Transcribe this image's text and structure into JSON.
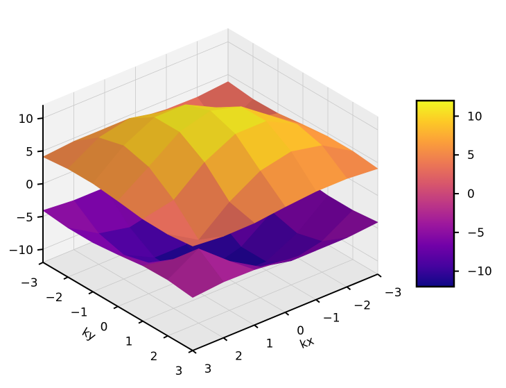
{
  "chart_data": {
    "type": "surface",
    "x_label": "kx",
    "y_label": "ky",
    "x": [
      -3,
      -2,
      -1,
      0,
      1,
      2,
      3
    ],
    "y": [
      -3,
      -2,
      -1,
      0,
      1,
      2,
      3
    ],
    "xlim": [
      -3,
      3
    ],
    "ylim": [
      -3,
      3
    ],
    "zlim": [
      -12,
      12
    ],
    "xticks": [
      {
        "value": -3,
        "label": "−3"
      },
      {
        "value": -2,
        "label": "−2"
      },
      {
        "value": -1,
        "label": "−1"
      },
      0,
      1,
      2,
      3
    ],
    "yticks": [
      {
        "value": -3,
        "label": "−3"
      },
      {
        "value": -2,
        "label": "−2"
      },
      {
        "value": -1,
        "label": "−1"
      },
      0,
      1,
      2,
      3
    ],
    "zticks": [
      {
        "value": -10,
        "label": "−10"
      },
      {
        "value": -5,
        "label": "−5"
      },
      0,
      5,
      10
    ],
    "grid": true,
    "surfaces": [
      {
        "z": [
          [
            3.92,
            3.48,
            3.56,
            4.08,
            4.5,
            4.5,
            4.08
          ],
          [
            3.48,
            0.67,
            4.5,
            7.31,
            8.32,
            7.31,
            4.5
          ],
          [
            3.56,
            4.5,
            8.32,
            10.7,
            10.7,
            8.32,
            4.5
          ],
          [
            4.08,
            7.31,
            10.7,
            12,
            10.7,
            7.31,
            4.08
          ],
          [
            4.5,
            8.32,
            10.7,
            10.7,
            8.32,
            4.5,
            3.56
          ],
          [
            4.5,
            7.31,
            8.32,
            7.31,
            4.5,
            0.67,
            3.48
          ],
          [
            4.08,
            4.5,
            4.5,
            4.08,
            3.56,
            3.48,
            3.92
          ]
        ]
      },
      {
        "z": [
          [
            -3.92,
            -3.48,
            -3.56,
            -4.08,
            -4.5,
            -4.5,
            -4.08
          ],
          [
            -3.48,
            -0.67,
            -4.5,
            -7.31,
            -8.32,
            -7.31,
            -4.5
          ],
          [
            -3.56,
            -4.5,
            -8.32,
            -10.7,
            -10.7,
            -8.32,
            -4.5
          ],
          [
            -4.08,
            -7.31,
            -10.7,
            -12,
            -10.7,
            -7.31,
            -4.08
          ],
          [
            -4.5,
            -8.32,
            -10.7,
            -10.7,
            -8.32,
            -4.5,
            -3.56
          ],
          [
            -4.5,
            -7.31,
            -8.32,
            -7.31,
            -4.5,
            -0.67,
            -3.48
          ],
          [
            -4.08,
            -4.5,
            -4.5,
            -4.08,
            -3.56,
            -3.48,
            -3.92
          ]
        ]
      }
    ],
    "clim": [
      -12,
      12
    ],
    "colormap": [
      "#0d0887",
      "#46039f",
      "#7201a8",
      "#9c179e",
      "#bd3786",
      "#d8576b",
      "#ed7953",
      "#fb9f3a",
      "#fdca26",
      "#f0f921"
    ],
    "colorbar_ticks": [
      {
        "value": -10,
        "label": "−10"
      },
      {
        "value": -5,
        "label": "−5"
      },
      0,
      5,
      10
    ]
  }
}
